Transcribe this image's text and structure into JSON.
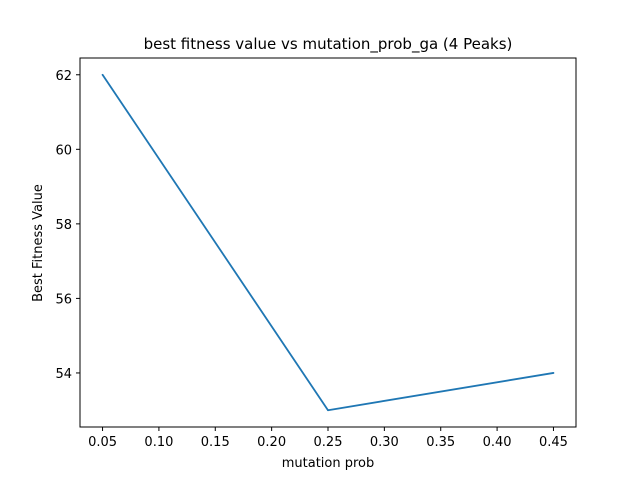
{
  "chart_data": {
    "type": "line",
    "title": "best fitness value vs mutation_prob_ga (4 Peaks)",
    "xlabel": "mutation prob",
    "ylabel": "Best Fitness Value",
    "x": [
      0.05,
      0.25,
      0.45
    ],
    "series": [
      {
        "values": [
          62,
          53,
          54
        ],
        "color": "#1f77b4"
      }
    ],
    "xlim": [
      0.03,
      0.47
    ],
    "ylim": [
      52.55,
      62.45
    ],
    "xticks": [
      0.05,
      0.1,
      0.15,
      0.2,
      0.25,
      0.3,
      0.35,
      0.4,
      0.45
    ],
    "xtick_labels": [
      "0.05",
      "0.10",
      "0.15",
      "0.20",
      "0.25",
      "0.30",
      "0.35",
      "0.40",
      "0.45"
    ],
    "yticks": [
      54,
      56,
      58,
      60,
      62
    ],
    "ytick_labels": [
      "54",
      "56",
      "58",
      "60",
      "62"
    ],
    "grid": false,
    "legend": "none"
  }
}
